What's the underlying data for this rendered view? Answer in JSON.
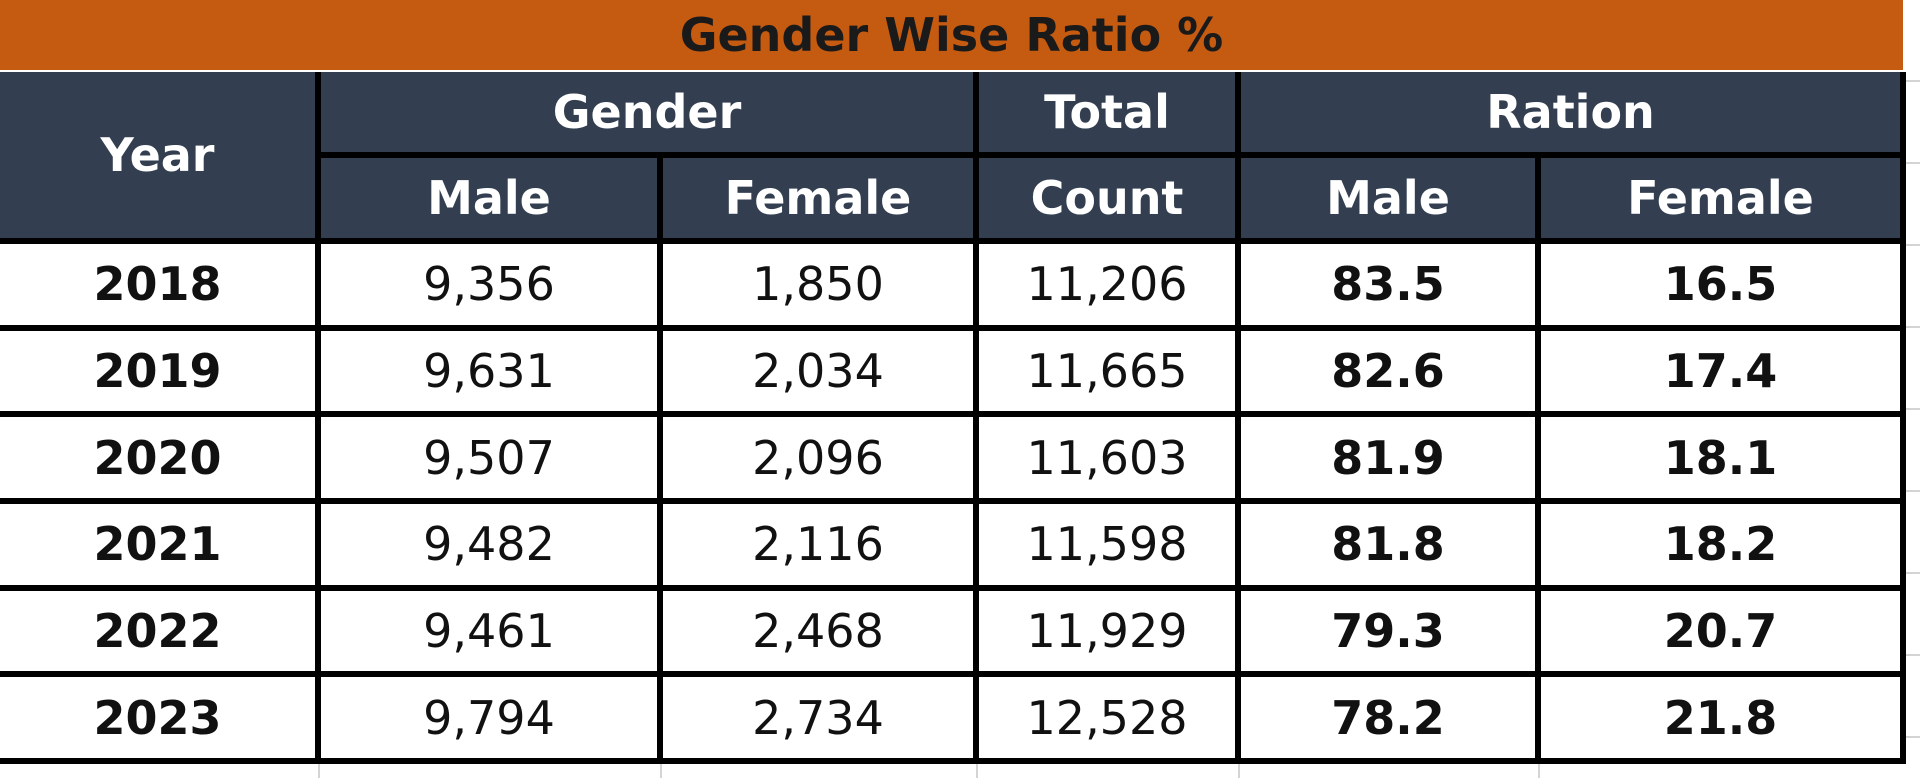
{
  "title": "Gender Wise Ratio %",
  "headers": {
    "year": "Year",
    "gender": "Gender",
    "total": "Total",
    "ration": "Ration",
    "gender_male": "Male",
    "gender_female": "Female",
    "count": "Count",
    "ration_male": "Male",
    "ration_female": "Female"
  },
  "rows": [
    {
      "year": "2018",
      "male": "9,356",
      "female": "1,850",
      "count": "11,206",
      "ratio_male": "83.5",
      "ratio_female": "16.5"
    },
    {
      "year": "2019",
      "male": "9,631",
      "female": "2,034",
      "count": "11,665",
      "ratio_male": "82.6",
      "ratio_female": "17.4"
    },
    {
      "year": "2020",
      "male": "9,507",
      "female": "2,096",
      "count": "11,603",
      "ratio_male": "81.9",
      "ratio_female": "18.1"
    },
    {
      "year": "2021",
      "male": "9,482",
      "female": "2,116",
      "count": "11,598",
      "ratio_male": "81.8",
      "ratio_female": "18.2"
    },
    {
      "year": "2022",
      "male": "9,461",
      "female": "2,468",
      "count": "11,929",
      "ratio_male": "79.3",
      "ratio_female": "20.7"
    },
    {
      "year": "2023",
      "male": "9,794",
      "female": "2,734",
      "count": "12,528",
      "ratio_male": "78.2",
      "ratio_female": "21.8"
    }
  ],
  "colors": {
    "title_bg": "#c55a11",
    "header_bg": "#333f50",
    "header_text": "#ffffff",
    "border": "#000000"
  }
}
